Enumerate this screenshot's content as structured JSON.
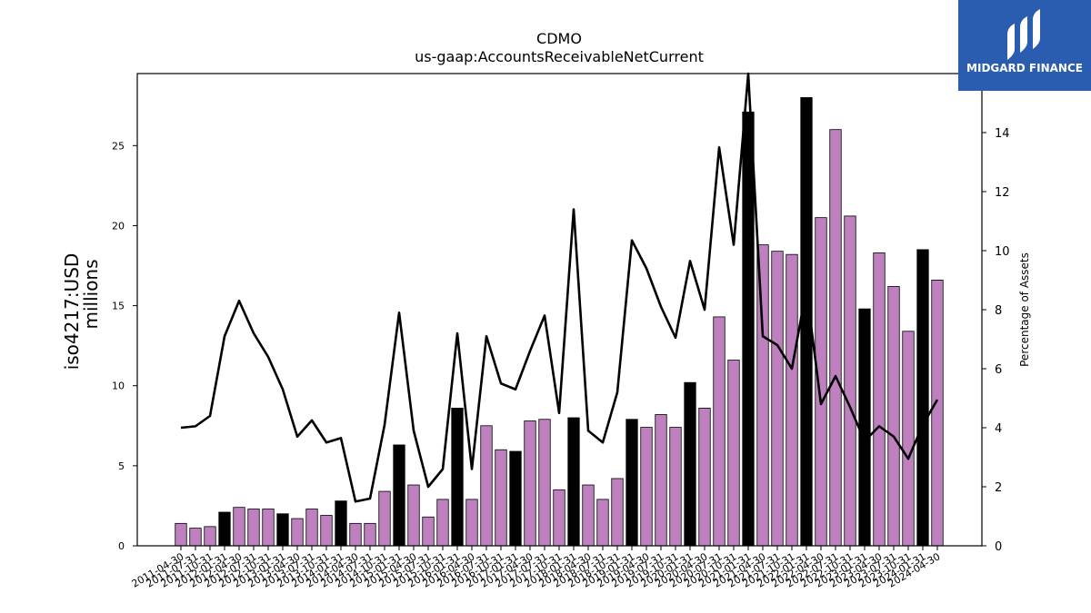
{
  "logo": {
    "text": "MIDGARD FINANCE",
    "color": "#2a5db0"
  },
  "chart_data": {
    "type": "bar",
    "title": "CDMO",
    "subtitle": "us-gaap:AccountsReceivableNetCurrent",
    "ylabel": "iso4217:USD",
    "ylabel2": "millions",
    "y2label": "Percentage of Assets",
    "ylim": [
      0,
      29.5
    ],
    "y2lim": [
      0,
      16.0
    ],
    "yticks": [
      0,
      5,
      10,
      15,
      20,
      25
    ],
    "y2ticks": [
      0,
      2,
      4,
      6,
      8,
      10,
      12,
      14
    ],
    "colors": {
      "bar_quarter": "#bf80bf",
      "bar_annual": "#000000",
      "line": "#000000"
    },
    "categories": [
      "2011-04-30",
      "2011-07-31",
      "2011-10-31",
      "2012-01-31",
      "2012-04-30",
      "2012-07-31",
      "2012-10-31",
      "2013-01-31",
      "2013-04-30",
      "2013-07-31",
      "2013-10-31",
      "2014-01-31",
      "2014-04-30",
      "2014-07-31",
      "2014-10-31",
      "2015-01-31",
      "2015-04-30",
      "2015-07-31",
      "2015-10-31",
      "2016-01-31",
      "2016-04-30",
      "2016-07-31",
      "2016-10-31",
      "2017-01-31",
      "2017-04-30",
      "2017-07-31",
      "2017-10-31",
      "2018-01-31",
      "2018-04-30",
      "2018-07-31",
      "2018-10-31",
      "2019-01-31",
      "2019-04-30",
      "2019-07-31",
      "2019-10-31",
      "2020-01-31",
      "2020-04-30",
      "2020-07-31",
      "2020-10-31",
      "2021-01-31",
      "2021-04-30",
      "2021-07-31",
      "2021-10-31",
      "2022-01-31",
      "2022-04-30",
      "2022-07-31",
      "2022-10-31",
      "2023-01-31",
      "2023-04-30",
      "2023-07-31",
      "2023-10-31",
      "2024-01-31",
      "2024-04-30"
    ],
    "tick_labels": [
      "2011-04-30",
      "2011-07-31",
      "2011-10-31",
      "2012-01-31",
      "2012-04-30",
      "2012-07-31",
      "2012-10-31",
      "2013-01-31",
      "2013-04-30",
      "2013-07-31",
      "2013-10-31",
      "2014-01-31",
      "2014-04-30",
      "2014-07-31",
      "2014-10-31",
      "2015-01-31",
      "2015-04-30",
      "2015-07-31",
      "2015-10-31",
      "2016-01-31",
      "2016-04-30",
      "2016-07-31",
      "2016-10-31",
      "2017-01-31",
      "2017-04-30",
      "2017-07-31",
      "2017-10-31",
      "2018-01-31",
      "2018-04-30",
      "2018-07-31",
      "2018-10-31",
      "2019-01-31",
      "2019-04-30",
      "2019-07-31",
      "2019-10-31",
      "2020-01-31",
      "2020-04-30",
      "2020-07-31",
      "2020-10-31",
      "2021-01-31",
      "2021-04-30",
      "2021-07-31",
      "2021-10-31",
      "2022-01-31",
      "2022-04-30",
      "2022-07-31",
      "2022-10-31",
      "2023-01-31",
      "2023-04-30",
      "2023-07-31",
      "2023-10-31",
      "2024-01-31",
      "2024-04-30"
    ],
    "series": [
      {
        "kind": "bar",
        "values": [
          1.4,
          1.1,
          1.2,
          2.1,
          2.4,
          2.3,
          2.3,
          2.0,
          1.7,
          2.3,
          1.9,
          2.8,
          1.4,
          1.4,
          3.4,
          6.3,
          3.8,
          1.8,
          2.9,
          8.6,
          2.9,
          7.5,
          6.0,
          5.9,
          7.8,
          7.9,
          3.5,
          8.0,
          3.8,
          2.9,
          4.2,
          7.9,
          7.4,
          8.2,
          7.4,
          10.2,
          8.6,
          14.3,
          11.6,
          27.1,
          18.8,
          18.4,
          18.2,
          28.0,
          20.5,
          26.0,
          20.6,
          14.8,
          18.3,
          16.2,
          13.4,
          18.5,
          16.6
        ],
        "annual": [
          false,
          false,
          false,
          true,
          false,
          false,
          false,
          true,
          false,
          false,
          false,
          true,
          false,
          false,
          false,
          true,
          false,
          false,
          false,
          true,
          false,
          false,
          false,
          true,
          false,
          false,
          false,
          true,
          false,
          false,
          false,
          true,
          false,
          false,
          false,
          true,
          false,
          false,
          false,
          true,
          false,
          false,
          false,
          true,
          false,
          false,
          false,
          true,
          false,
          false,
          false,
          true,
          false
        ]
      },
      {
        "kind": "line",
        "axis": "right",
        "values": [
          4.0,
          4.05,
          4.4,
          7.1,
          8.3,
          7.2,
          6.4,
          5.3,
          3.7,
          4.25,
          3.5,
          3.65,
          1.5,
          1.6,
          4.1,
          7.9,
          3.9,
          2.0,
          2.6,
          7.2,
          2.6,
          7.1,
          5.5,
          5.3,
          6.6,
          7.8,
          4.5,
          11.4,
          3.9,
          3.5,
          5.2,
          10.35,
          9.4,
          8.1,
          7.05,
          9.65,
          8.0,
          13.5,
          10.2,
          16.0,
          7.1,
          6.8,
          6.0,
          8.7,
          4.8,
          5.75,
          4.7,
          3.55,
          4.05,
          3.7,
          2.95,
          4.1,
          4.95
        ]
      }
    ]
  }
}
